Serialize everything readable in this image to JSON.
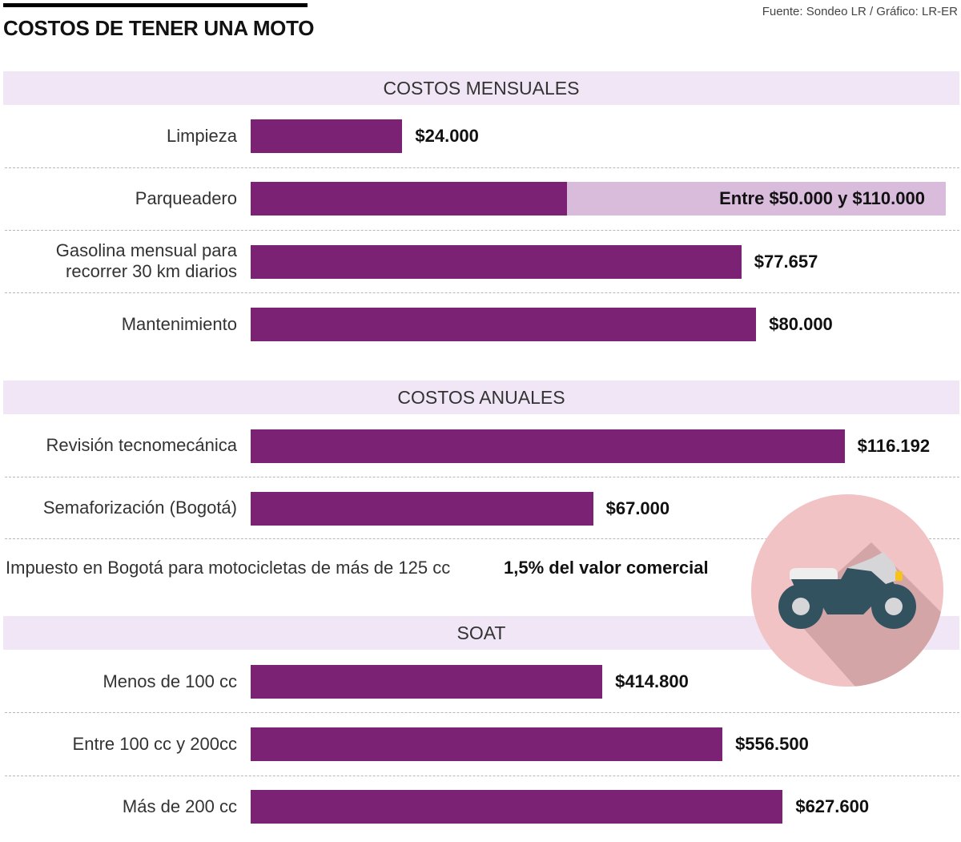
{
  "header": {
    "title": "COSTOS DE TENER UNA MOTO",
    "source": "Fuente: Sondeo LR / Gráfico: LR-ER"
  },
  "colors": {
    "bar": "#7b2275",
    "range": "#d9bcdc",
    "band": "#f1e6f5",
    "circle": "#f2c3c4",
    "shadow": "#d3a5a7",
    "moto_body": "#33525f",
    "moto_fairing": "#d6d6d9",
    "moto_seat": "#eeeeee",
    "moto_light": "#f5c31c"
  },
  "sections": {
    "mensuales": "COSTOS MENSUALES",
    "anuales": "COSTOS ANUALES",
    "soat": "SOAT"
  },
  "tax": {
    "label": "Impuesto en Bogotá para motocicletas de más de 125 cc",
    "value": "1,5% del valor comercial"
  },
  "illustration": {
    "icon": "motorcycle-icon"
  },
  "chart_data": {
    "type": "bar",
    "orientation": "horizontal",
    "title": "COSTOS DE TENER UNA MOTO",
    "groups": [
      {
        "name": "COSTOS MENSUALES",
        "items": [
          {
            "label": "Limpieza",
            "value": 24000,
            "display": "$24.000"
          },
          {
            "label": "Parqueadero",
            "value": 50000,
            "value_max": 110000,
            "display": "Entre $50.000 y $110.000"
          },
          {
            "label": "Gasolina mensual para recorrer 30 km diarios",
            "label_lines": [
              "Gasolina mensual para",
              "recorrer 30 km diarios"
            ],
            "value": 77657,
            "display": "$77.657"
          },
          {
            "label": "Mantenimiento",
            "value": 80000,
            "display": "$80.000"
          }
        ],
        "scale_max": 110000
      },
      {
        "name": "COSTOS ANUALES",
        "items": [
          {
            "label": "Revisión tecnomecánica",
            "value": 116192,
            "display": "$116.192"
          },
          {
            "label": "Semaforización (Bogotá)",
            "value": 67000,
            "display": "$67.000"
          }
        ],
        "scale_max": 136000
      },
      {
        "name": "SOAT",
        "items": [
          {
            "label": "Menos de 100 cc",
            "value": 414800,
            "display": "$414.800"
          },
          {
            "label": "Entre 100 cc y 200cc",
            "value": 556500,
            "display": "$556.500"
          },
          {
            "label": "Más de 200 cc",
            "value": 627600,
            "display": "$627.600"
          }
        ],
        "scale_max": 820000
      }
    ]
  }
}
